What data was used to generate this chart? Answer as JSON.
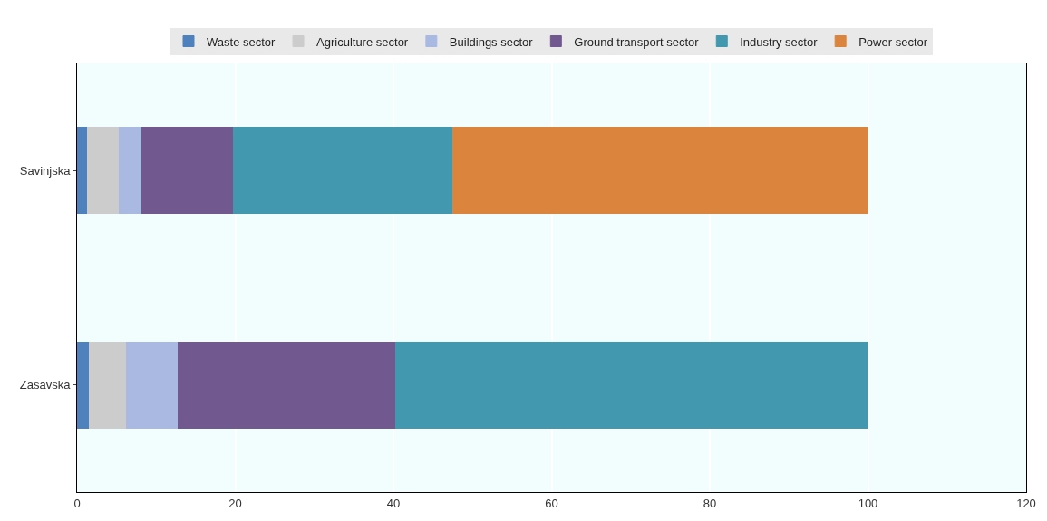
{
  "chart_data": {
    "type": "bar",
    "orientation": "horizontal",
    "stacked": true,
    "categories": [
      "Savinjska",
      "Zasavska"
    ],
    "series": [
      {
        "name": "Waste sector",
        "color": "#4f81bd",
        "values": [
          1.3,
          1.5
        ]
      },
      {
        "name": "Agriculture sector",
        "color": "#cccccc",
        "values": [
          4.0,
          4.8
        ]
      },
      {
        "name": "Buildings sector",
        "color": "#a9b9e2",
        "values": [
          2.9,
          6.5
        ]
      },
      {
        "name": "Ground transport sector",
        "color": "#71588f",
        "values": [
          11.6,
          27.5
        ]
      },
      {
        "name": "Industry sector",
        "color": "#4198af",
        "values": [
          27.7,
          59.7
        ]
      },
      {
        "name": "Power sector",
        "color": "#db843d",
        "values": [
          52.5,
          null
        ]
      }
    ],
    "xlim": [
      0,
      120
    ],
    "xticks": [
      0,
      20,
      40,
      60,
      80,
      100,
      120
    ],
    "grid": "x",
    "legend": "top"
  }
}
